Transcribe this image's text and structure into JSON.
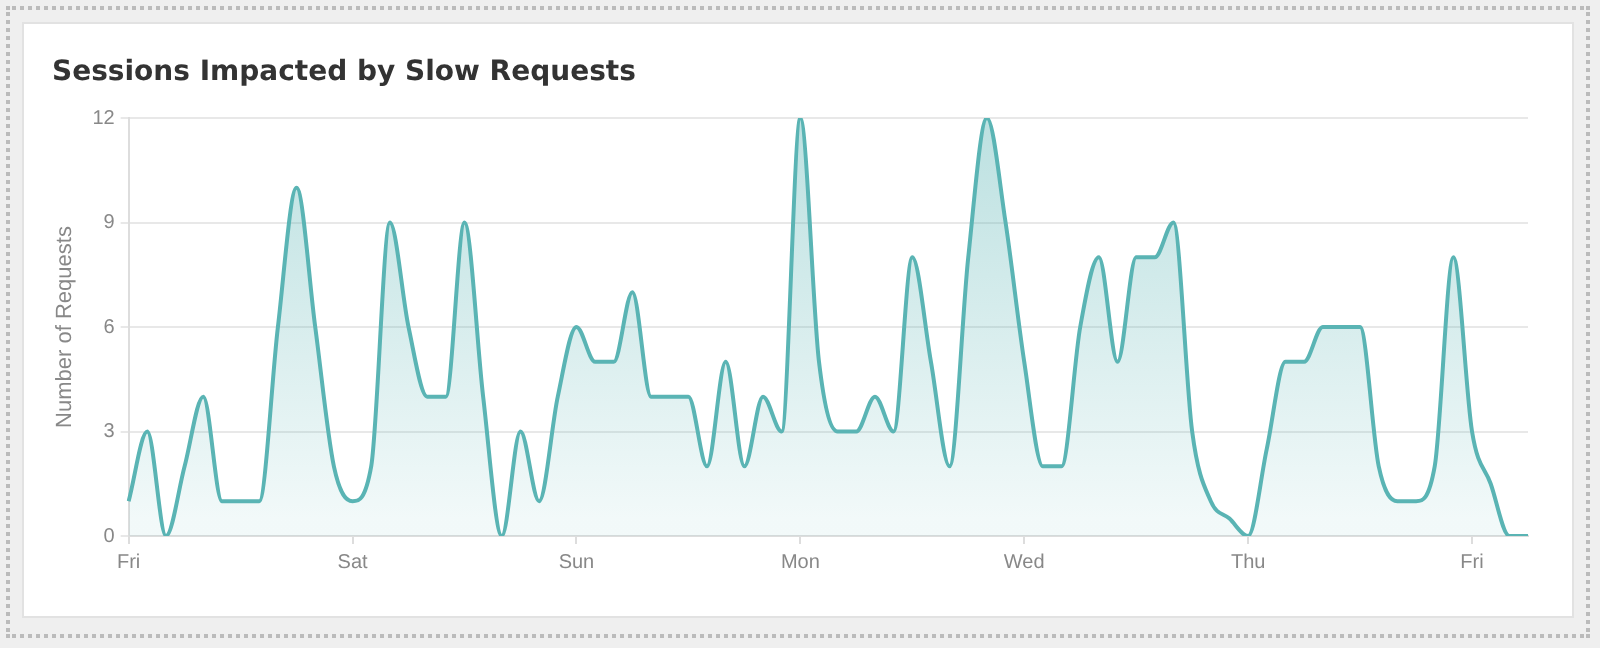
{
  "chart_data": {
    "type": "area",
    "title": "Sessions Impacted by Slow Requests",
    "ylabel": "Number of Requests",
    "categories": [
      "Fri",
      null,
      null,
      null,
      null,
      null,
      null,
      null,
      null,
      null,
      null,
      null,
      "Sat",
      null,
      null,
      null,
      null,
      null,
      null,
      null,
      null,
      null,
      null,
      null,
      "Sun",
      null,
      null,
      null,
      null,
      null,
      null,
      null,
      null,
      null,
      null,
      null,
      "Mon",
      null,
      null,
      null,
      null,
      null,
      null,
      null,
      null,
      null,
      null,
      null,
      "Wed",
      null,
      null,
      null,
      null,
      null,
      null,
      null,
      null,
      null,
      null,
      null,
      "Thu",
      null,
      null,
      null,
      null,
      null,
      null,
      null,
      null,
      null,
      null,
      null,
      "Fri",
      null,
      null,
      null
    ],
    "series": [
      {
        "color": "#5ab4b4",
        "values": [
          1,
          3,
          0,
          2,
          4,
          1,
          1,
          1,
          6,
          10,
          6,
          2,
          1,
          2,
          9,
          6,
          4,
          4,
          9,
          4,
          0,
          3,
          1,
          4,
          6,
          5,
          5,
          7,
          4,
          4,
          4,
          2,
          5,
          2,
          4,
          3,
          12,
          5,
          3,
          3,
          4,
          3,
          8,
          5,
          2,
          8,
          12,
          9,
          5,
          2,
          2,
          6,
          8,
          5,
          8,
          8,
          9,
          3,
          1,
          0.5,
          0,
          2.5,
          5,
          5,
          6,
          6,
          6,
          2,
          1,
          1,
          2,
          8,
          3,
          1.5,
          0,
          0
        ]
      }
    ],
    "ylim": [
      0,
      12
    ],
    "yticks": [
      0,
      3,
      6,
      9,
      12
    ],
    "grid": "y",
    "legend": false,
    "marker": "none",
    "line_style": "solid"
  }
}
